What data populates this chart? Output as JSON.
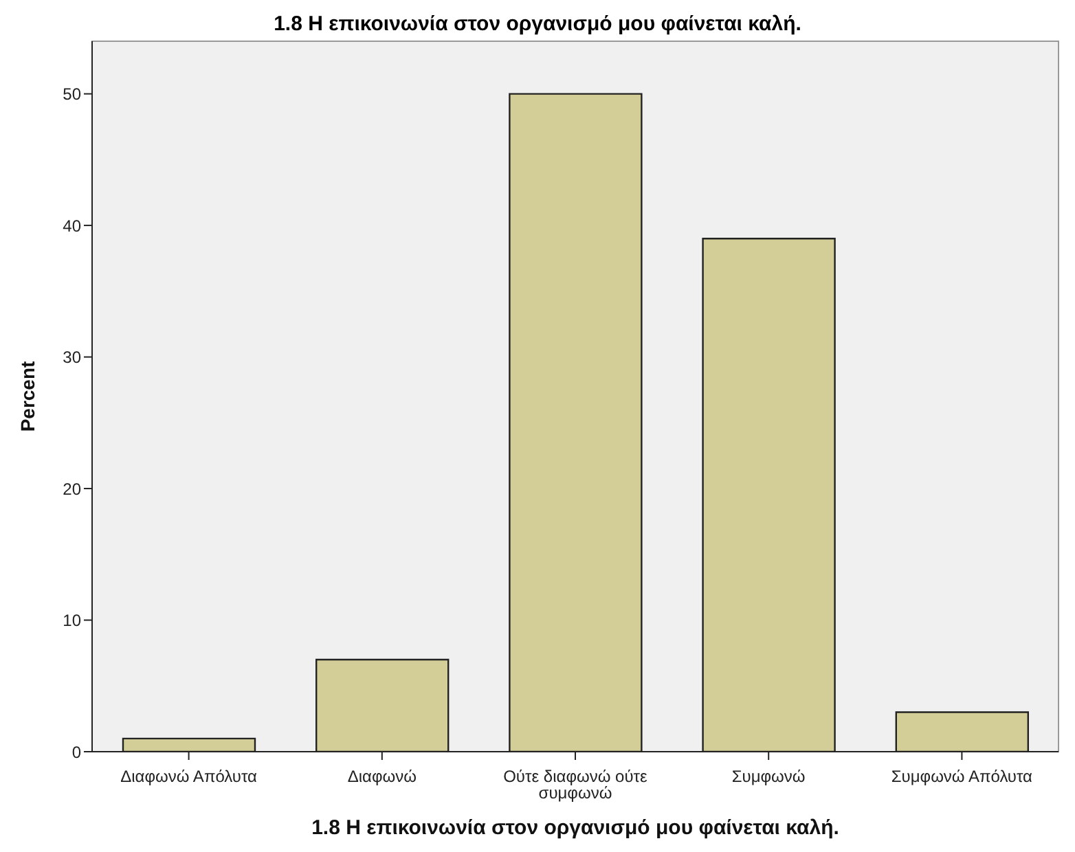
{
  "chart_data": {
    "type": "bar",
    "title": "1.8 Η επικοινωνία στον οργανισμό μου φαίνεται καλή.",
    "xlabel": "1.8 Η επικοινωνία στον οργανισμό μου φαίνεται καλή.",
    "ylabel": "Percent",
    "categories": [
      "Διαφωνώ Απόλυτα",
      "Διαφωνώ",
      "Ούτε διαφωνώ ούτε συμφωνώ",
      "Συμφωνώ",
      "Συμφωνώ Απόλυτα"
    ],
    "values": [
      1,
      7,
      50,
      39,
      3
    ],
    "color": "#d3ce97",
    "ylim": [
      0,
      54
    ],
    "yticks": [
      0,
      10,
      20,
      30,
      40,
      50
    ]
  }
}
